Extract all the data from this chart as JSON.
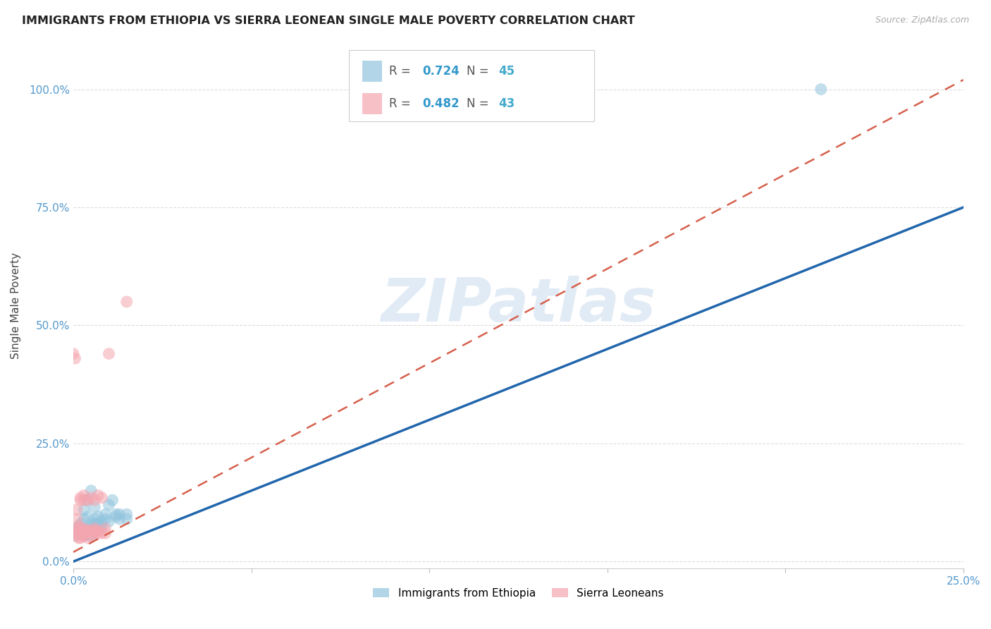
{
  "title": "IMMIGRANTS FROM ETHIOPIA VS SIERRA LEONEAN SINGLE MALE POVERTY CORRELATION CHART",
  "source": "Source: ZipAtlas.com",
  "ylabel": "Single Male Poverty",
  "xlim": [
    0.0,
    0.25
  ],
  "ylim": [
    -0.015,
    1.1
  ],
  "yticks": [
    0.0,
    0.25,
    0.5,
    0.75,
    1.0
  ],
  "ytick_labels": [
    "0.0%",
    "25.0%",
    "50.0%",
    "75.0%",
    "100.0%"
  ],
  "xticks": [
    0.0,
    0.05,
    0.1,
    0.15,
    0.2,
    0.25
  ],
  "xtick_labels": [
    "0.0%",
    "",
    "",
    "",
    "",
    "25.0%"
  ],
  "legend_R_eth": "0.724",
  "legend_N_eth": "45",
  "legend_R_sle": "0.482",
  "legend_N_sle": "43",
  "legend_label_ethiopia": "Immigrants from Ethiopia",
  "legend_label_sierra": "Sierra Leoneans",
  "color_ethiopia": "#92c5de",
  "color_sierra": "#f4a6b0",
  "color_line_ethiopia": "#2166ac",
  "color_line_sierra": "#d6604d",
  "color_R": "#3399cc",
  "color_N": "#44aacc",
  "watermark": "ZIPatlas",
  "eth_line_x0": 0.0,
  "eth_line_y0": 0.0,
  "eth_line_x1": 0.25,
  "eth_line_y1": 0.75,
  "sle_line_x0": 0.0,
  "sle_line_y0": 0.02,
  "sle_line_x1": 0.25,
  "sle_line_y1": 1.02,
  "ethiopia_points": [
    [
      0.0005,
      0.055
    ],
    [
      0.001,
      0.065
    ],
    [
      0.0015,
      0.06
    ],
    [
      0.0015,
      0.075
    ],
    [
      0.002,
      0.06
    ],
    [
      0.002,
      0.07
    ],
    [
      0.002,
      0.08
    ],
    [
      0.0025,
      0.06
    ],
    [
      0.003,
      0.055
    ],
    [
      0.003,
      0.065
    ],
    [
      0.003,
      0.09
    ],
    [
      0.003,
      0.11
    ],
    [
      0.0035,
      0.06
    ],
    [
      0.004,
      0.055
    ],
    [
      0.004,
      0.07
    ],
    [
      0.004,
      0.095
    ],
    [
      0.004,
      0.13
    ],
    [
      0.0045,
      0.065
    ],
    [
      0.005,
      0.055
    ],
    [
      0.005,
      0.07
    ],
    [
      0.005,
      0.08
    ],
    [
      0.005,
      0.15
    ],
    [
      0.0055,
      0.06
    ],
    [
      0.006,
      0.08
    ],
    [
      0.006,
      0.09
    ],
    [
      0.006,
      0.115
    ],
    [
      0.0065,
      0.08
    ],
    [
      0.007,
      0.075
    ],
    [
      0.007,
      0.08
    ],
    [
      0.007,
      0.095
    ],
    [
      0.0075,
      0.07
    ],
    [
      0.008,
      0.075
    ],
    [
      0.008,
      0.085
    ],
    [
      0.009,
      0.09
    ],
    [
      0.009,
      0.1
    ],
    [
      0.01,
      0.085
    ],
    [
      0.01,
      0.12
    ],
    [
      0.011,
      0.13
    ],
    [
      0.012,
      0.095
    ],
    [
      0.012,
      0.1
    ],
    [
      0.013,
      0.09
    ],
    [
      0.013,
      0.1
    ],
    [
      0.015,
      0.09
    ],
    [
      0.015,
      0.1
    ],
    [
      0.21,
      1.0
    ]
  ],
  "sierra_points": [
    [
      0.0005,
      0.06
    ],
    [
      0.001,
      0.055
    ],
    [
      0.001,
      0.07
    ],
    [
      0.001,
      0.09
    ],
    [
      0.001,
      0.11
    ],
    [
      0.0015,
      0.05
    ],
    [
      0.0015,
      0.065
    ],
    [
      0.0015,
      0.075
    ],
    [
      0.002,
      0.05
    ],
    [
      0.002,
      0.06
    ],
    [
      0.002,
      0.07
    ],
    [
      0.002,
      0.13
    ],
    [
      0.002,
      0.135
    ],
    [
      0.0025,
      0.055
    ],
    [
      0.003,
      0.055
    ],
    [
      0.003,
      0.065
    ],
    [
      0.003,
      0.07
    ],
    [
      0.003,
      0.13
    ],
    [
      0.003,
      0.14
    ],
    [
      0.0035,
      0.06
    ],
    [
      0.004,
      0.05
    ],
    [
      0.004,
      0.065
    ],
    [
      0.004,
      0.13
    ],
    [
      0.0045,
      0.065
    ],
    [
      0.005,
      0.055
    ],
    [
      0.005,
      0.065
    ],
    [
      0.005,
      0.135
    ],
    [
      0.0055,
      0.06
    ],
    [
      0.006,
      0.06
    ],
    [
      0.006,
      0.07
    ],
    [
      0.006,
      0.13
    ],
    [
      0.0065,
      0.065
    ],
    [
      0.007,
      0.06
    ],
    [
      0.007,
      0.065
    ],
    [
      0.007,
      0.14
    ],
    [
      0.008,
      0.06
    ],
    [
      0.008,
      0.135
    ],
    [
      0.009,
      0.06
    ],
    [
      0.009,
      0.07
    ],
    [
      0.01,
      0.44
    ],
    [
      0.015,
      0.55
    ],
    [
      0.0005,
      0.43
    ],
    [
      0.0,
      0.44
    ]
  ]
}
